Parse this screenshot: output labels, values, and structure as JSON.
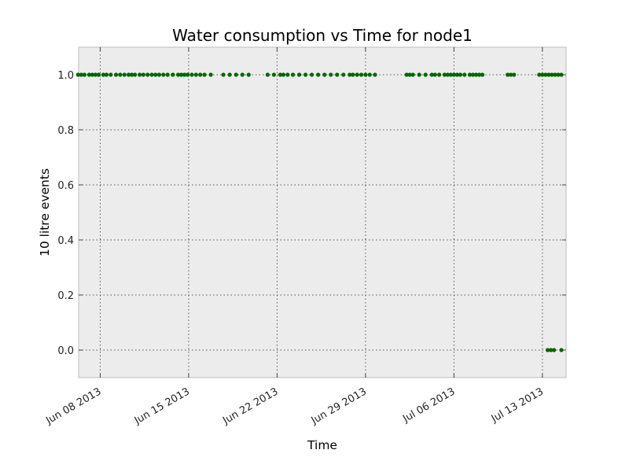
{
  "chart_data": {
    "type": "scatter",
    "title": "Water consumption vs Time for node1",
    "xlabel": "Time",
    "ylabel": "10 litre events",
    "xlim": [
      "2013-06-06",
      "2013-07-14"
    ],
    "ylim": [
      -0.1,
      1.1
    ],
    "grid": true,
    "legend": "none",
    "x_ticks": [
      "2013-06-08",
      "2013-06-15",
      "2013-06-22",
      "2013-06-29",
      "2013-07-06",
      "2013-07-13"
    ],
    "x_tick_labels": [
      "Jun 08 2013",
      "Jun 15 2013",
      "Jun 22 2013",
      "Jun 29 2013",
      "Jul 06 2013",
      "Jul 13 2013"
    ],
    "y_ticks": [
      0.0,
      0.2,
      0.4,
      0.6,
      0.8,
      1.0
    ],
    "y_tick_labels": [
      "0.0",
      "0.2",
      "0.4",
      "0.6",
      "0.8",
      "1.0"
    ],
    "colors": {
      "points": "#006400",
      "plot_bg": "#ececec",
      "grid": "#555555"
    },
    "series": [
      {
        "values_y1": {
          "y": 1.0,
          "dates": [
            "2013-06-06 00:00",
            "2013-06-06 06:00",
            "2013-06-06 12:00",
            "2013-06-06 18:00",
            "2013-06-07 03:00",
            "2013-06-07 09:00",
            "2013-06-07 15:00",
            "2013-06-07 21:00",
            "2013-06-08 06:00",
            "2013-06-08 12:00",
            "2013-06-08 20:00",
            "2013-06-09 06:00",
            "2013-06-09 14:00",
            "2013-06-09 22:00",
            "2013-06-10 06:00",
            "2013-06-10 12:00",
            "2013-06-10 18:00",
            "2013-06-11 03:00",
            "2013-06-11 10:00",
            "2013-06-11 18:00",
            "2013-06-12 02:00",
            "2013-06-12 09:00",
            "2013-06-12 16:00",
            "2013-06-13 00:00",
            "2013-06-13 08:00",
            "2013-06-13 18:00",
            "2013-06-14 04:00",
            "2013-06-14 10:00",
            "2013-06-14 16:00",
            "2013-06-14 22:00",
            "2013-06-15 06:00",
            "2013-06-15 14:00",
            "2013-06-15 22:00",
            "2013-06-16 06:00",
            "2013-06-16 18:00",
            "2013-06-17 18:00",
            "2013-06-18 06:00",
            "2013-06-18 18:00",
            "2013-06-19 06:00",
            "2013-06-19 18:00",
            "2013-06-21 06:00",
            "2013-06-21 18:00",
            "2013-06-22 06:00",
            "2013-06-22 12:00",
            "2013-06-22 20:00",
            "2013-06-23 06:00",
            "2013-06-23 18:00",
            "2013-06-24 06:00",
            "2013-06-24 18:00",
            "2013-06-25 06:00",
            "2013-06-25 18:00",
            "2013-06-26 06:00",
            "2013-06-26 18:00",
            "2013-06-27 06:00",
            "2013-06-27 18:00",
            "2013-06-28 00:00",
            "2013-06-28 08:00",
            "2013-06-28 16:00",
            "2013-06-29 00:00",
            "2013-06-29 08:00",
            "2013-06-29 18:00",
            "2013-07-02 06:00",
            "2013-07-02 12:00",
            "2013-07-02 18:00",
            "2013-07-03 06:00",
            "2013-07-03 18:00",
            "2013-07-04 06:00",
            "2013-07-04 12:00",
            "2013-07-04 20:00",
            "2013-07-05 06:00",
            "2013-07-05 12:00",
            "2013-07-05 18:00",
            "2013-07-06 00:00",
            "2013-07-06 06:00",
            "2013-07-06 12:00",
            "2013-07-06 20:00",
            "2013-07-07 06:00",
            "2013-07-07 12:00",
            "2013-07-07 18:00",
            "2013-07-08 00:00",
            "2013-07-08 06:00",
            "2013-07-10 06:00",
            "2013-07-10 12:00",
            "2013-07-10 18:00",
            "2013-07-12 18:00",
            "2013-07-13 00:00",
            "2013-07-13 06:00",
            "2013-07-13 12:00",
            "2013-07-13 18:00",
            "2013-07-14 00:00",
            "2013-07-14 06:00",
            "2013-07-14 12:00"
          ]
        },
        "values_y0": {
          "y": 0.0,
          "dates": [
            "2013-07-13 10:00",
            "2013-07-13 16:00",
            "2013-07-13 22:00",
            "2013-07-14 12:00"
          ]
        }
      }
    ]
  }
}
